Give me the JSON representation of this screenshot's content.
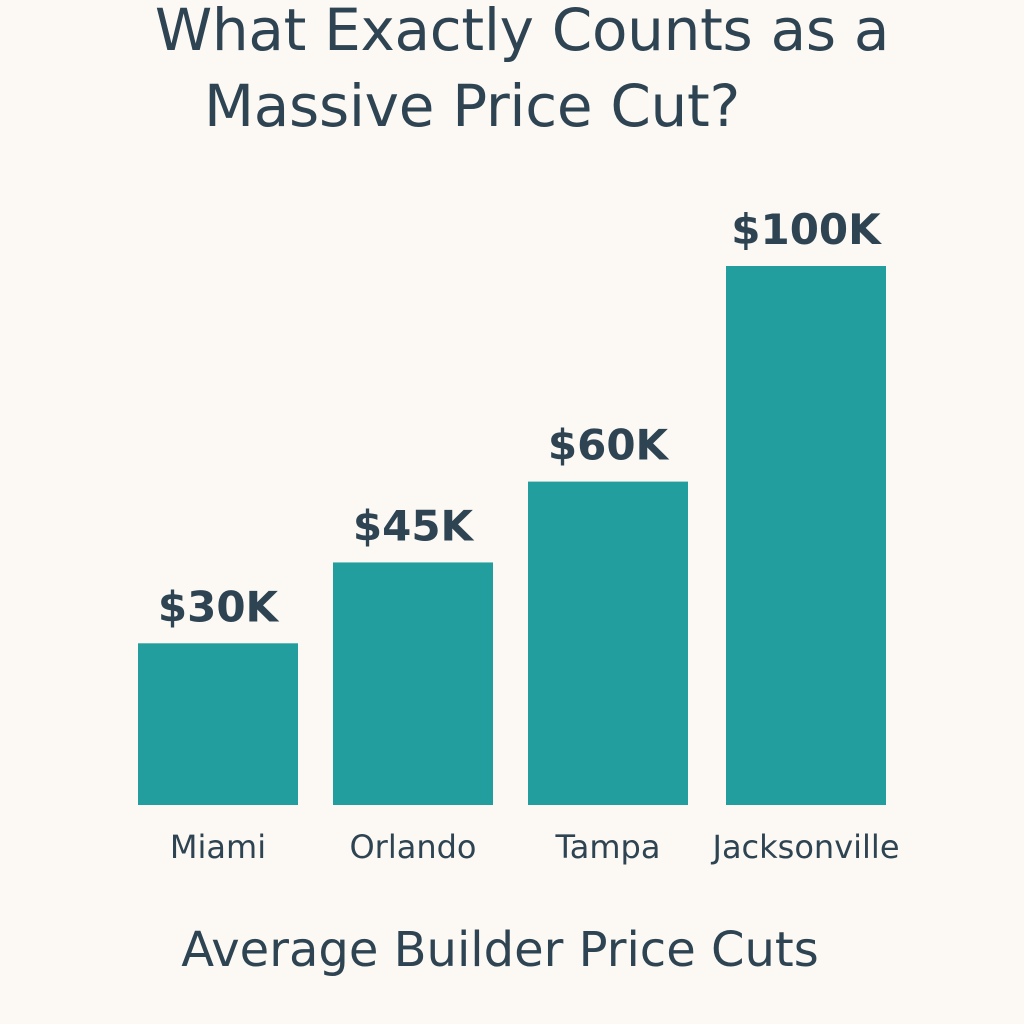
{
  "page": {
    "title_line1": "What Exactly Counts as a",
    "title_line2": "Massive Price Cut?",
    "caption": "Average Builder Price Cuts"
  },
  "colors": {
    "background": "#fcf9f4",
    "bar": "#239e9e",
    "text": "#2e4452"
  },
  "chart_data": {
    "type": "bar",
    "title": "What Exactly Counts as a Massive Price Cut?",
    "xlabel": "Average Builder Price Cuts",
    "ylabel": "",
    "categories": [
      "Miami",
      "Orlando",
      "Tampa",
      "Jacksonville"
    ],
    "values": [
      30000,
      45000,
      60000,
      100000
    ],
    "data_labels": [
      "$30K",
      "$45K",
      "$60K",
      "$100K"
    ],
    "ylim": [
      0,
      100000
    ],
    "grid": false,
    "legend": "none",
    "axes_visible": false
  }
}
